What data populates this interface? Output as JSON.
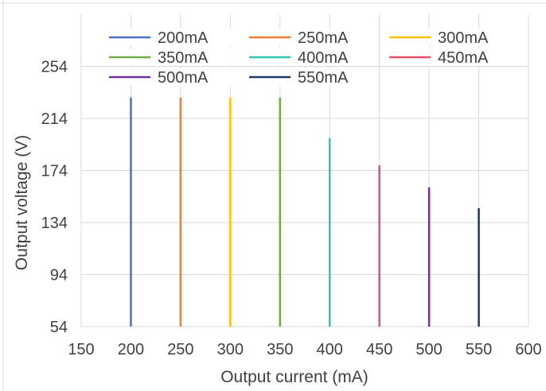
{
  "chart_data": {
    "type": "line",
    "xlabel": "Output current (mA)",
    "ylabel": "Output voltage (V)",
    "xlim": [
      150,
      600
    ],
    "ylim": [
      54,
      294
    ],
    "xticks": [
      150,
      200,
      250,
      300,
      350,
      400,
      450,
      500,
      550,
      600
    ],
    "yticks": [
      54,
      94,
      134,
      174,
      214,
      254
    ],
    "grid": true,
    "legend_position": "top",
    "series": [
      {
        "name": "200mA",
        "color": "#4472C4",
        "x": [
          200,
          200
        ],
        "y": [
          54,
          230
        ]
      },
      {
        "name": "250mA",
        "color": "#ED7D31",
        "x": [
          250,
          250
        ],
        "y": [
          54,
          230
        ]
      },
      {
        "name": "300mA",
        "color": "#FFC000",
        "x": [
          300,
          300
        ],
        "y": [
          54,
          230
        ]
      },
      {
        "name": "350mA",
        "color": "#70AD47",
        "x": [
          350,
          350
        ],
        "y": [
          54,
          230
        ]
      },
      {
        "name": "400mA",
        "color": "#2EC4B6",
        "x": [
          400,
          400
        ],
        "y": [
          54,
          199
        ]
      },
      {
        "name": "450mA",
        "color": "#E8506A",
        "x": [
          450,
          450
        ],
        "y": [
          54,
          178
        ]
      },
      {
        "name": "500mA",
        "color": "#7030A0",
        "x": [
          500,
          500
        ],
        "y": [
          54,
          161
        ]
      },
      {
        "name": "550mA",
        "color": "#1F3864",
        "x": [
          550,
          550
        ],
        "y": [
          54,
          145
        ]
      }
    ]
  }
}
